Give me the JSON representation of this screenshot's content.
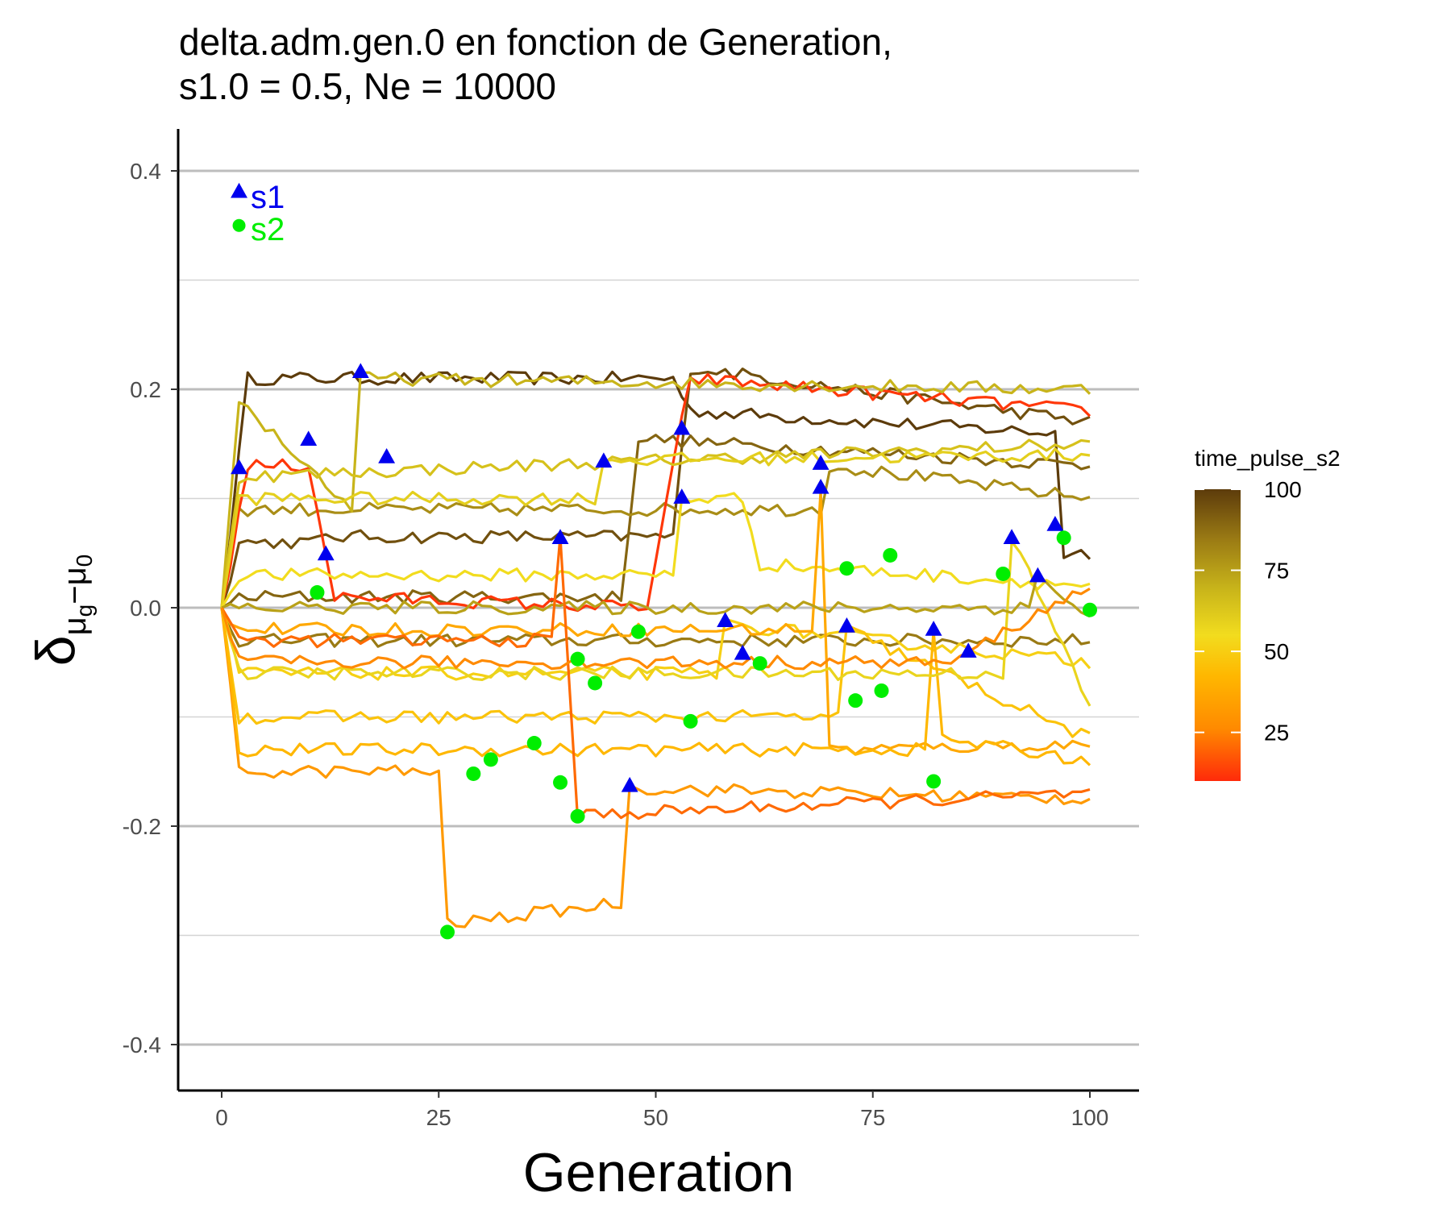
{
  "chart_data": {
    "type": "line",
    "title_line1": "delta.adm.gen.0 en fonction de Generation,",
    "title_line2": "s1.0 = 0.5, Ne = 10000",
    "xlabel": "Generation",
    "ylabel_main": "δ",
    "ylabel_sub1": "μ",
    "ylabel_sub1b": "g",
    "ylabel_mid": "−μ",
    "ylabel_sub2": "0",
    "xlim": [
      -5,
      105
    ],
    "ylim": [
      -0.44,
      0.44
    ],
    "x_ticks": [
      0,
      25,
      50,
      75,
      100
    ],
    "x_tick_labels": [
      "0",
      "25",
      "50",
      "75",
      "100"
    ],
    "y_ticks": [
      -0.4,
      -0.2,
      0.0,
      0.2,
      0.4
    ],
    "y_tick_labels": [
      "-0.4",
      "-0.2",
      "0.0",
      "0.2",
      "0.4"
    ],
    "y_minor_ticks": [
      -0.3,
      -0.1,
      0.1,
      0.3
    ],
    "grid": "horizontal",
    "legend": {
      "title": "time_pulse_s2",
      "position": "right",
      "labels": [
        "100",
        "75",
        "50",
        "25"
      ],
      "label_values": [
        100,
        75,
        50,
        25
      ],
      "range": [
        10,
        100
      ],
      "colors": [
        "#ff2a0a",
        "#ff8a00",
        "#ffb700",
        "#f2dc1e",
        "#c8b41a",
        "#9a7a14",
        "#5c3b0b"
      ]
    },
    "marker_labels": [
      {
        "text": "s1",
        "marker": "triangle",
        "color": "#0000ee"
      },
      {
        "text": "s2",
        "marker": "circle",
        "color": "#00ee00"
      }
    ],
    "series": [
      {
        "tp": 100,
        "pulse_x": 2,
        "events": [
          [
            3,
            0.21
          ],
          [
            52,
            0.21
          ],
          [
            54,
            0.18
          ],
          [
            96,
            0.16
          ],
          [
            97,
            0.05
          ],
          [
            100,
            0.05
          ]
        ],
        "base": 0.19
      },
      {
        "tp": 95,
        "pulse_x": 2,
        "events": [
          [
            2,
            0.06
          ],
          [
            11,
            0.06
          ],
          [
            12,
            0.065
          ],
          [
            52,
            0.065
          ],
          [
            54,
            0.22
          ],
          [
            100,
            0.17
          ]
        ],
        "base": 0.06
      },
      {
        "tp": 90,
        "pulse_x": 2,
        "events": [
          [
            2,
            0.01
          ],
          [
            46,
            0.01
          ],
          [
            48,
            0.155
          ],
          [
            100,
            0.13
          ]
        ],
        "base": 0.01
      },
      {
        "tp": 85,
        "pulse_x": 2,
        "events": [
          [
            2,
            -0.03
          ],
          [
            100,
            -0.03
          ]
        ],
        "base": -0.03
      },
      {
        "tp": 80,
        "pulse_x": 2,
        "events": [
          [
            2,
            0.09
          ],
          [
            69,
            0.09
          ],
          [
            70,
            0.13
          ],
          [
            100,
            0.1
          ]
        ],
        "base": 0.09
      },
      {
        "tp": 12,
        "pulse_x": 2,
        "events": [
          [
            3,
            0.13
          ],
          [
            10,
            0.13
          ],
          [
            12,
            0.05
          ],
          [
            13,
            0.01
          ],
          [
            49,
            0.0
          ],
          [
            53,
            0.17
          ],
          [
            54,
            0.21
          ],
          [
            100,
            0.18
          ]
        ],
        "base": 0.13
      },
      {
        "tp": 70,
        "pulse_x": 16,
        "events": [
          [
            2,
            0.19
          ],
          [
            15,
            0.09
          ],
          [
            16,
            0.21
          ],
          [
            100,
            0.2
          ]
        ],
        "base": 0.09
      },
      {
        "tp": 65,
        "pulse_x": 19,
        "events": [
          [
            2,
            0.12
          ],
          [
            100,
            0.15
          ]
        ],
        "base": 0.12
      },
      {
        "tp": 60,
        "pulse_x": 44,
        "events": [
          [
            2,
            0.1
          ],
          [
            43,
            0.1
          ],
          [
            44,
            0.135
          ],
          [
            100,
            0.14
          ]
        ],
        "base": 0.1
      },
      {
        "tp": 55,
        "pulse_x": 53,
        "events": [
          [
            2,
            0.03
          ],
          [
            52,
            0.03
          ],
          [
            53,
            0.1
          ],
          [
            60,
            0.1
          ],
          [
            62,
            0.04
          ],
          [
            100,
            0.02
          ]
        ],
        "base": 0.03
      },
      {
        "tp": 50,
        "pulse_x": 58,
        "events": [
          [
            2,
            -0.06
          ],
          [
            57,
            -0.06
          ],
          [
            58,
            -0.015
          ],
          [
            100,
            -0.05
          ]
        ],
        "base": -0.06
      },
      {
        "tp": 45,
        "pulse_x": 72,
        "events": [
          [
            2,
            -0.1
          ],
          [
            71,
            -0.1
          ],
          [
            72,
            -0.02
          ],
          [
            100,
            -0.12
          ]
        ],
        "base": -0.1
      },
      {
        "tp": 30,
        "pulse_x": 47,
        "events": [
          [
            2,
            -0.15
          ],
          [
            25,
            -0.15
          ],
          [
            26,
            -0.29
          ],
          [
            46,
            -0.27
          ],
          [
            47,
            -0.165
          ],
          [
            100,
            -0.175
          ]
        ],
        "base": -0.15
      },
      {
        "tp": 35,
        "pulse_x": 69,
        "events": [
          [
            2,
            -0.02
          ],
          [
            68,
            -0.02
          ],
          [
            69,
            0.11
          ],
          [
            70,
            -0.13
          ],
          [
            100,
            -0.125
          ]
        ],
        "base": -0.02
      },
      {
        "tp": 40,
        "pulse_x": 82,
        "events": [
          [
            2,
            -0.13
          ],
          [
            81,
            -0.13
          ],
          [
            82,
            -0.02
          ],
          [
            83,
            -0.12
          ],
          [
            100,
            -0.14
          ]
        ],
        "base": -0.13
      },
      {
        "tp": 58,
        "pulse_x": 91,
        "events": [
          [
            2,
            -0.06
          ],
          [
            90,
            -0.06
          ],
          [
            91,
            0.065
          ],
          [
            100,
            -0.09
          ]
        ],
        "base": -0.06
      },
      {
        "tp": 75,
        "pulse_x": 94,
        "events": [
          [
            2,
            0.0
          ],
          [
            93,
            0.0
          ],
          [
            94,
            0.03
          ],
          [
            100,
            -0.01
          ]
        ],
        "base": 0.0
      },
      {
        "tp": 20,
        "pulse_x": 39,
        "events": [
          [
            2,
            -0.03
          ],
          [
            38,
            -0.03
          ],
          [
            39,
            0.065
          ],
          [
            41,
            -0.19
          ],
          [
            100,
            -0.17
          ]
        ],
        "base": -0.03
      },
      {
        "tp": 25,
        "pulse_x": 86,
        "events": [
          [
            2,
            -0.05
          ],
          [
            85,
            -0.05
          ],
          [
            86,
            -0.04
          ],
          [
            100,
            0.02
          ]
        ],
        "base": -0.05
      }
    ],
    "s1_points": [
      [
        2,
        0.128
      ],
      [
        10,
        0.154
      ],
      [
        12,
        0.049
      ],
      [
        16,
        0.216
      ],
      [
        19,
        0.138
      ],
      [
        39,
        0.064
      ],
      [
        44,
        0.134
      ],
      [
        47,
        -0.163
      ],
      [
        53,
        0.164
      ],
      [
        53,
        0.101
      ],
      [
        58,
        -0.012
      ],
      [
        60,
        -0.042
      ],
      [
        69,
        0.132
      ],
      [
        69,
        0.11
      ],
      [
        72,
        -0.017
      ],
      [
        82,
        -0.02
      ],
      [
        86,
        -0.04
      ],
      [
        91,
        0.064
      ],
      [
        94,
        0.029
      ],
      [
        96,
        0.076
      ]
    ],
    "s2_points": [
      [
        11,
        0.014
      ],
      [
        26,
        -0.297
      ],
      [
        29,
        -0.152
      ],
      [
        31,
        -0.139
      ],
      [
        36,
        -0.124
      ],
      [
        39,
        -0.16
      ],
      [
        41,
        -0.047
      ],
      [
        41,
        -0.191
      ],
      [
        43,
        -0.069
      ],
      [
        48,
        -0.022
      ],
      [
        54,
        -0.104
      ],
      [
        62,
        -0.051
      ],
      [
        72,
        0.036
      ],
      [
        73,
        -0.085
      ],
      [
        76,
        -0.076
      ],
      [
        77,
        0.048
      ],
      [
        82,
        -0.159
      ],
      [
        90,
        0.031
      ],
      [
        97,
        0.064
      ],
      [
        100,
        -0.002
      ]
    ],
    "legend_marker_points": {
      "s1": [
        2,
        0.381
      ],
      "s2": [
        2,
        0.35
      ]
    }
  }
}
